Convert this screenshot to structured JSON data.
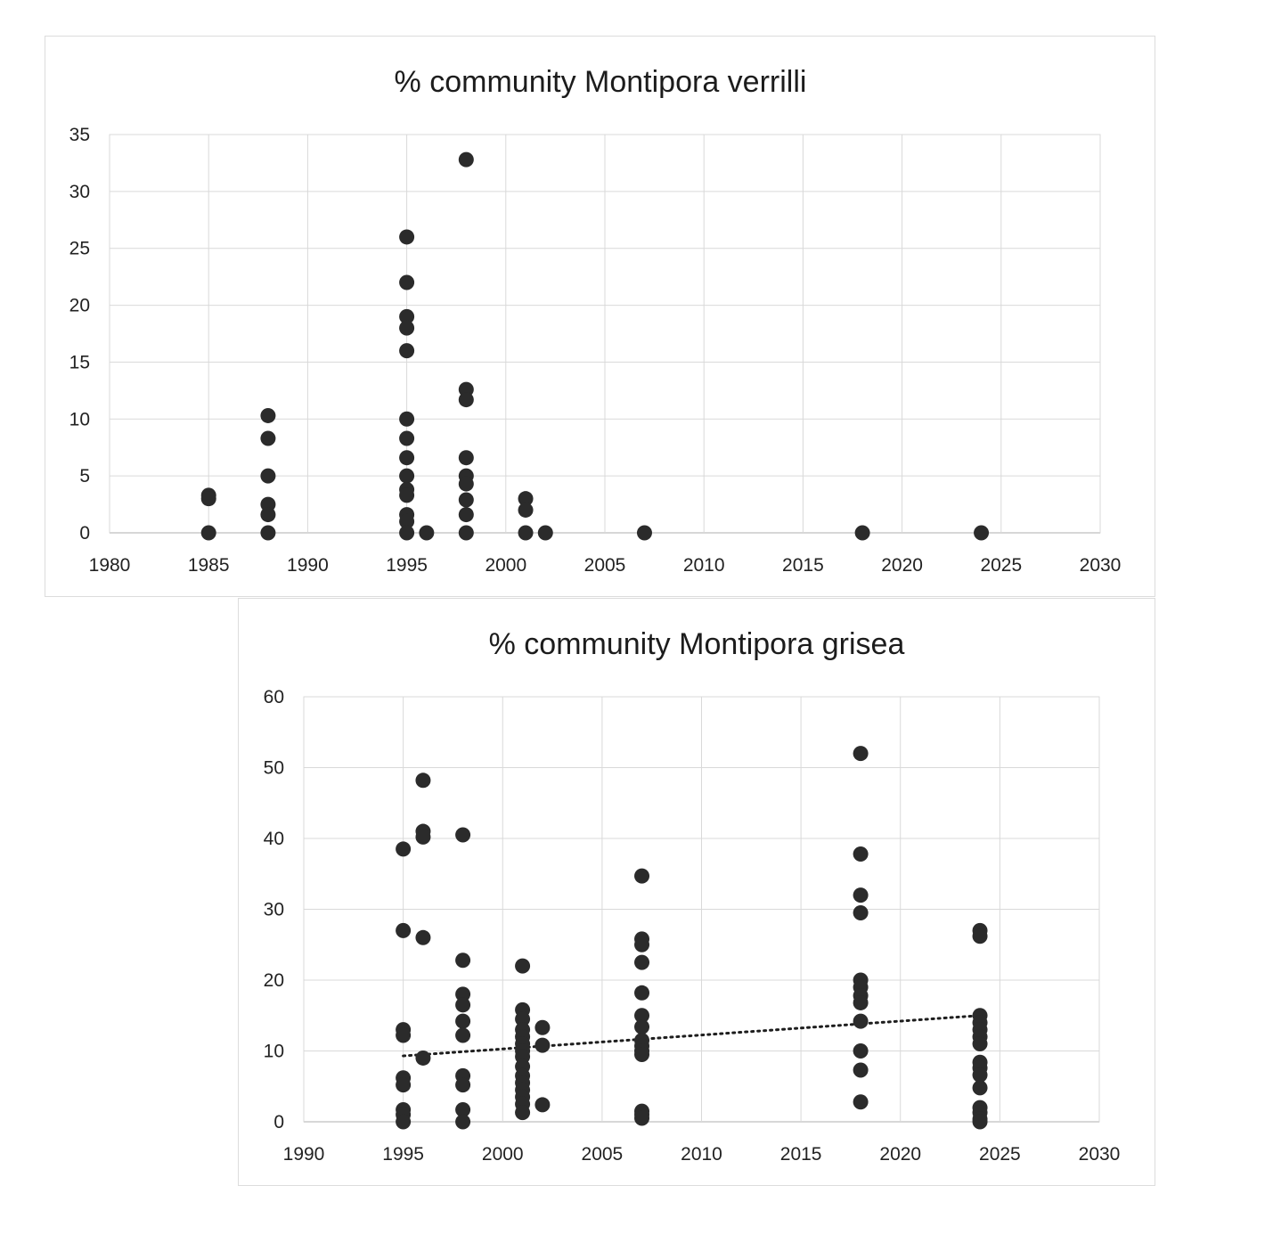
{
  "chart_data": [
    {
      "type": "scatter",
      "title": "% community Montipora verrilli",
      "xlabel": "",
      "ylabel": "",
      "xlim": [
        1980,
        2030
      ],
      "ylim": [
        0,
        35
      ],
      "xticks": [
        1980,
        1985,
        1990,
        1995,
        2000,
        2005,
        2010,
        2015,
        2020,
        2025,
        2030
      ],
      "yticks": [
        0,
        5,
        10,
        15,
        20,
        25,
        30,
        35
      ],
      "grid": true,
      "legend": "none",
      "trendline": false,
      "points": [
        [
          1985,
          3.3
        ],
        [
          1985,
          3.0
        ],
        [
          1985,
          0
        ],
        [
          1988,
          10.3
        ],
        [
          1988,
          8.3
        ],
        [
          1988,
          5.0
        ],
        [
          1988,
          2.5
        ],
        [
          1988,
          1.6
        ],
        [
          1988,
          0
        ],
        [
          1995,
          26
        ],
        [
          1995,
          22
        ],
        [
          1995,
          19
        ],
        [
          1995,
          18
        ],
        [
          1995,
          16
        ],
        [
          1995,
          10
        ],
        [
          1995,
          8.3
        ],
        [
          1995,
          6.6
        ],
        [
          1995,
          5.0
        ],
        [
          1995,
          3.8
        ],
        [
          1995,
          3.3
        ],
        [
          1995,
          1.6
        ],
        [
          1995,
          1.0
        ],
        [
          1995,
          0
        ],
        [
          1996,
          0
        ],
        [
          1998,
          32.8
        ],
        [
          1998,
          12.6
        ],
        [
          1998,
          11.7
        ],
        [
          1998,
          6.6
        ],
        [
          1998,
          5.0
        ],
        [
          1998,
          4.3
        ],
        [
          1998,
          2.9
        ],
        [
          1998,
          1.6
        ],
        [
          1998,
          0
        ],
        [
          2001,
          3.0
        ],
        [
          2001,
          2.0
        ],
        [
          2001,
          0
        ],
        [
          2002,
          0
        ],
        [
          2007,
          0
        ],
        [
          2018,
          0
        ],
        [
          2024,
          0
        ]
      ]
    },
    {
      "type": "scatter",
      "title": "% community Montipora grisea",
      "xlabel": "",
      "ylabel": "",
      "xlim": [
        1990,
        2030
      ],
      "ylim": [
        0,
        60
      ],
      "xticks": [
        1990,
        1995,
        2000,
        2005,
        2010,
        2015,
        2020,
        2025,
        2030
      ],
      "yticks": [
        0,
        10,
        20,
        30,
        40,
        50,
        60
      ],
      "grid": true,
      "legend": "none",
      "trendline": {
        "style": "dotted",
        "linear": true,
        "x": [
          1995,
          2024
        ],
        "y": [
          9.3,
          15.0
        ]
      },
      "points": [
        [
          1995,
          38.5
        ],
        [
          1995,
          27
        ],
        [
          1995,
          13
        ],
        [
          1995,
          12.2
        ],
        [
          1995,
          6.2
        ],
        [
          1995,
          5.2
        ],
        [
          1995,
          1.7
        ],
        [
          1995,
          1.0
        ],
        [
          1995,
          0
        ],
        [
          1996,
          48.2
        ],
        [
          1996,
          41
        ],
        [
          1996,
          40.2
        ],
        [
          1996,
          26
        ],
        [
          1996,
          9
        ],
        [
          1998,
          40.5
        ],
        [
          1998,
          22.8
        ],
        [
          1998,
          18
        ],
        [
          1998,
          16.5
        ],
        [
          1998,
          14.2
        ],
        [
          1998,
          12.2
        ],
        [
          1998,
          6.5
        ],
        [
          1998,
          5.2
        ],
        [
          1998,
          1.7
        ],
        [
          1998,
          0
        ],
        [
          2001,
          22
        ],
        [
          2001,
          15.8
        ],
        [
          2001,
          14.5
        ],
        [
          2001,
          13
        ],
        [
          2001,
          12
        ],
        [
          2001,
          11
        ],
        [
          2001,
          10
        ],
        [
          2001,
          9.2
        ],
        [
          2001,
          7.8
        ],
        [
          2001,
          6.5
        ],
        [
          2001,
          5.5
        ],
        [
          2001,
          4.5
        ],
        [
          2001,
          3.5
        ],
        [
          2001,
          2.5
        ],
        [
          2001,
          1.3
        ],
        [
          2002,
          13.3
        ],
        [
          2002,
          10.8
        ],
        [
          2002,
          2.4
        ],
        [
          2007,
          34.7
        ],
        [
          2007,
          25.8
        ],
        [
          2007,
          25
        ],
        [
          2007,
          22.5
        ],
        [
          2007,
          18.2
        ],
        [
          2007,
          15
        ],
        [
          2007,
          13.4
        ],
        [
          2007,
          11.5
        ],
        [
          2007,
          10.7
        ],
        [
          2007,
          10
        ],
        [
          2007,
          9.5
        ],
        [
          2007,
          1.5
        ],
        [
          2007,
          1.0
        ],
        [
          2007,
          0.5
        ],
        [
          2018,
          52
        ],
        [
          2018,
          37.8
        ],
        [
          2018,
          32
        ],
        [
          2018,
          29.5
        ],
        [
          2018,
          20
        ],
        [
          2018,
          19
        ],
        [
          2018,
          17.8
        ],
        [
          2018,
          16.8
        ],
        [
          2018,
          14.2
        ],
        [
          2018,
          10
        ],
        [
          2018,
          7.3
        ],
        [
          2018,
          2.8
        ],
        [
          2024,
          27
        ],
        [
          2024,
          26.2
        ],
        [
          2024,
          15
        ],
        [
          2024,
          14
        ],
        [
          2024,
          13
        ],
        [
          2024,
          12
        ],
        [
          2024,
          11
        ],
        [
          2024,
          8.4
        ],
        [
          2024,
          7.6
        ],
        [
          2024,
          6.6
        ],
        [
          2024,
          4.8
        ],
        [
          2024,
          2.0
        ],
        [
          2024,
          1.3
        ],
        [
          2024,
          0.4
        ],
        [
          2024,
          0
        ]
      ]
    }
  ]
}
